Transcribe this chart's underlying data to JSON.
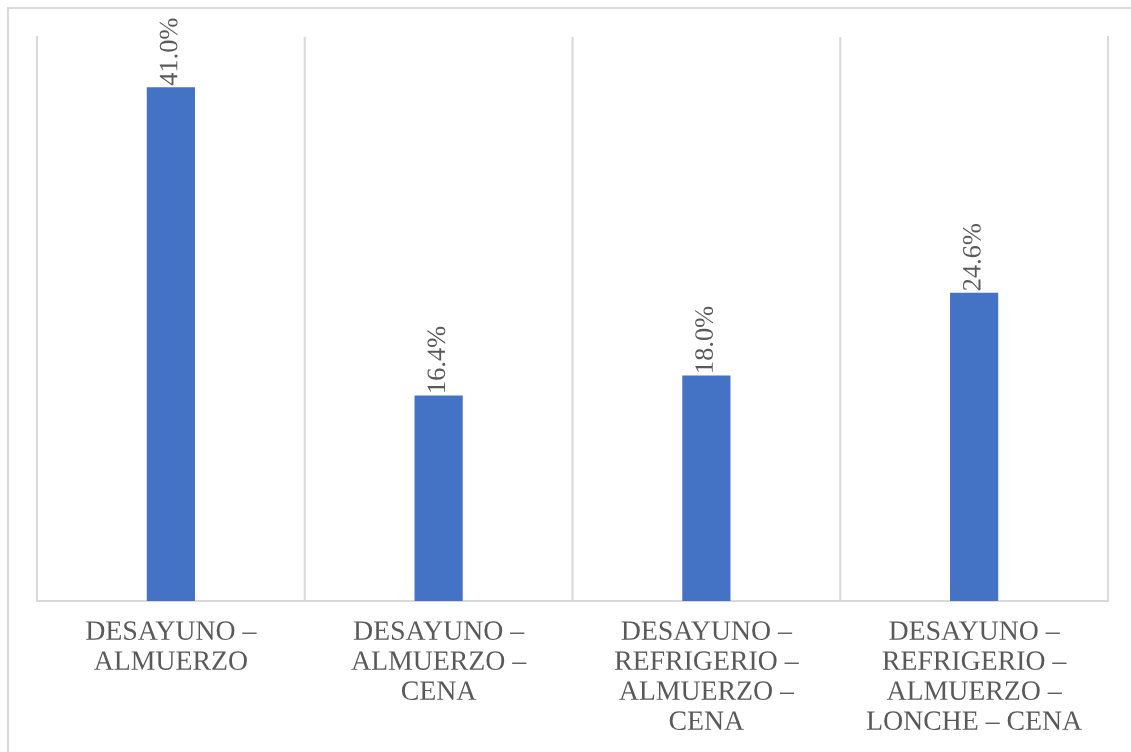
{
  "chart_data": {
    "type": "bar",
    "categories": [
      "DESAYUNO –\nALMUERZO",
      "DESAYUNO –\nALMUERZO –\nCENA",
      "DESAYUNO –\nREFRIGERIO –\nALMUERZO –\nCENA",
      "DESAYUNO –\nREFRIGERIO –\nALMUERZO –\nLONCHE – CENA"
    ],
    "values": [
      41.0,
      16.4,
      18.0,
      24.6
    ],
    "value_labels": [
      "41.0%",
      "16.4%",
      "18.0%",
      "24.6%"
    ],
    "color": "#4472c4",
    "ylim": [
      0,
      45
    ],
    "grid": "x",
    "tick_labels": "x"
  }
}
